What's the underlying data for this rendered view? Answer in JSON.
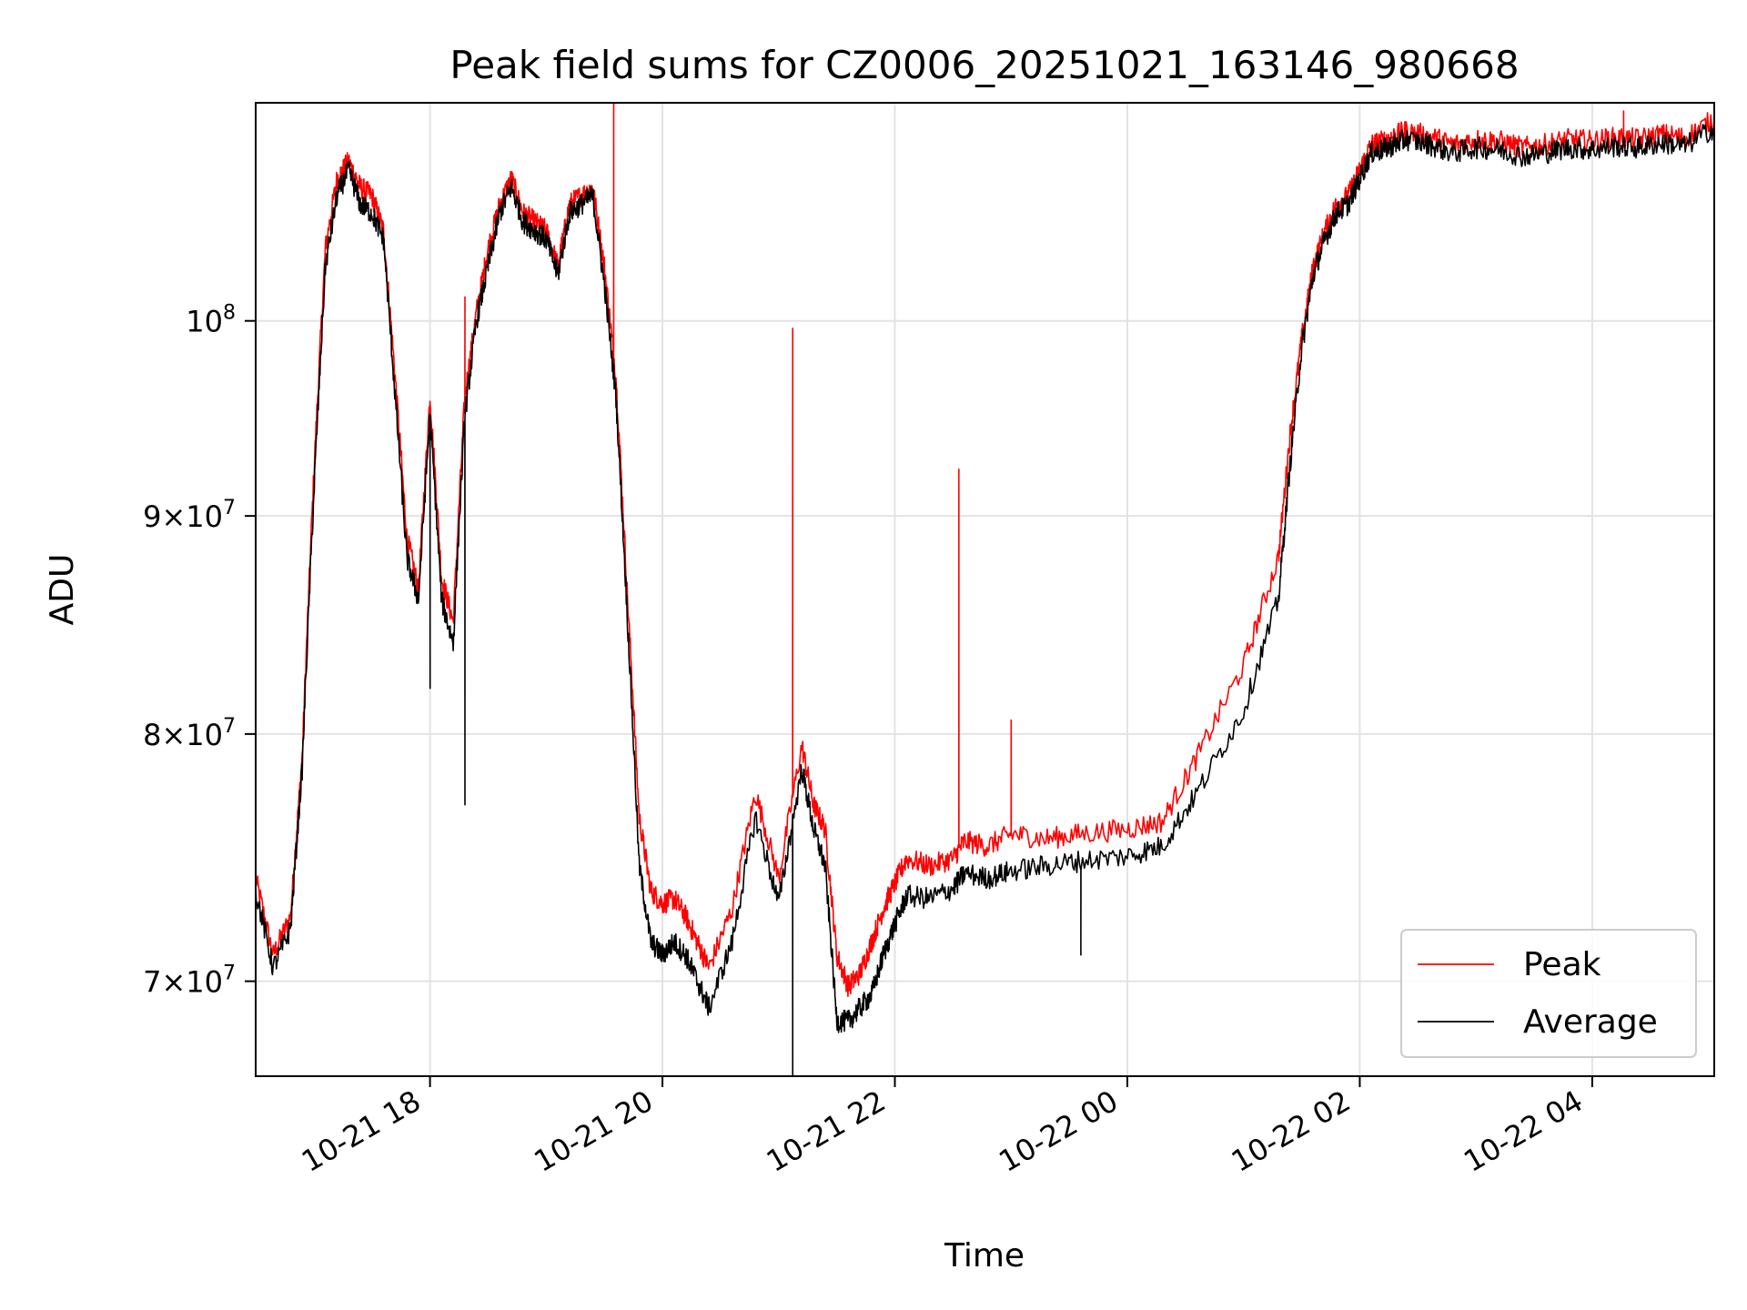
{
  "chart_data": {
    "type": "line",
    "title": "Peak field sums for CZ0006_20251021_163146_980668",
    "xlabel": "Time",
    "ylabel": "ADU",
    "yscale": "log",
    "xlim": [
      16.5,
      29.05
    ],
    "ylim": [
      66500000,
      112500000
    ],
    "grid": true,
    "legend_position": "lower-right",
    "x_ticks": [
      {
        "value": 18,
        "label": "10-21 18"
      },
      {
        "value": 20,
        "label": "10-21 20"
      },
      {
        "value": 22,
        "label": "10-21 22"
      },
      {
        "value": 24,
        "label": "10-22 00"
      },
      {
        "value": 26,
        "label": "10-22 02"
      },
      {
        "value": 28,
        "label": "10-22 04"
      }
    ],
    "y_ticks": [
      {
        "value": 70000000,
        "mant": "7",
        "times": "×",
        "base": "10",
        "exp": "7"
      },
      {
        "value": 80000000,
        "mant": "8",
        "times": "×",
        "base": "10",
        "exp": "7"
      },
      {
        "value": 90000000,
        "mant": "9",
        "times": "×",
        "base": "10",
        "exp": "7"
      },
      {
        "value": 100000000,
        "mant": "",
        "times": "",
        "base": "10",
        "exp": "8"
      }
    ],
    "series": [
      {
        "name": "Peak",
        "color": "#ff0000",
        "x": [
          16.5,
          16.65,
          16.8,
          16.9,
          17.0,
          17.1,
          17.2,
          17.3,
          17.4,
          17.5,
          17.6,
          17.7,
          17.8,
          17.9,
          18.0,
          18.1,
          18.2,
          18.3,
          18.4,
          18.5,
          18.6,
          18.7,
          18.8,
          18.9,
          19.0,
          19.1,
          19.2,
          19.3,
          19.4,
          19.5,
          19.6,
          19.7,
          19.8,
          19.9,
          20.0,
          20.1,
          20.2,
          20.3,
          20.4,
          20.6,
          20.8,
          21.0,
          21.2,
          21.3,
          21.4,
          21.5,
          21.6,
          21.7,
          21.8,
          21.9,
          22.0,
          22.1,
          22.3,
          22.5,
          22.6,
          22.8,
          23.0,
          23.3,
          23.6,
          24.0,
          24.3,
          24.6,
          25.0,
          25.3,
          25.4,
          25.5,
          25.6,
          25.7,
          25.8,
          25.9,
          26.0,
          26.1,
          26.2,
          26.3,
          26.4,
          26.6,
          26.8,
          27.0,
          27.2,
          27.4,
          27.6,
          27.8,
          28.0,
          28.2,
          28.4,
          28.6,
          28.8,
          29.05
        ],
        "y": [
          74000000,
          71000000,
          72500000,
          79000000,
          92000000,
          104000000,
          108000000,
          109000000,
          107500000,
          107000000,
          105000000,
          97000000,
          89000000,
          86500000,
          96000000,
          87000000,
          85000000,
          96000000,
          100500000,
          104000000,
          106500000,
          108000000,
          106000000,
          105500000,
          105000000,
          103000000,
          106500000,
          107000000,
          107500000,
          103000000,
          97000000,
          86000000,
          76500000,
          73500000,
          73000000,
          73200000,
          72500000,
          71500000,
          70500000,
          72800000,
          77500000,
          74000000,
          79500000,
          77000000,
          76000000,
          71000000,
          69800000,
          70300000,
          71500000,
          72800000,
          73800000,
          74800000,
          74500000,
          74800000,
          75500000,
          75300000,
          75800000,
          75600000,
          75800000,
          76000000,
          76300000,
          79000000,
          83000000,
          88000000,
          94000000,
          99000000,
          103000000,
          105000000,
          106500000,
          107000000,
          108500000,
          110000000,
          110200000,
          110500000,
          110800000,
          110500000,
          110000000,
          110300000,
          110200000,
          109800000,
          110000000,
          110300000,
          110200000,
          110400000,
          110300000,
          110600000,
          110400000,
          111500000
        ],
        "spikes": [
          {
            "x": 19.58,
            "y": 112500000
          },
          {
            "x": 21.12,
            "y": 99600000
          },
          {
            "x": 22.55,
            "y": 92300000
          },
          {
            "x": 23.0,
            "y": 80600000
          },
          {
            "x": 18.3,
            "y": 101300000
          },
          {
            "x": 28.27,
            "y": 112000000
          }
        ]
      },
      {
        "name": "Average",
        "color": "#000000",
        "x": [
          16.5,
          16.65,
          16.8,
          16.9,
          17.0,
          17.1,
          17.2,
          17.3,
          17.4,
          17.5,
          17.6,
          17.7,
          17.8,
          17.9,
          18.0,
          18.1,
          18.2,
          18.3,
          18.4,
          18.5,
          18.6,
          18.7,
          18.8,
          18.9,
          19.0,
          19.1,
          19.2,
          19.3,
          19.4,
          19.5,
          19.6,
          19.7,
          19.8,
          19.9,
          20.0,
          20.1,
          20.2,
          20.3,
          20.4,
          20.6,
          20.8,
          21.0,
          21.2,
          21.3,
          21.4,
          21.5,
          21.6,
          21.7,
          21.8,
          21.9,
          22.0,
          22.1,
          22.3,
          22.5,
          22.6,
          22.8,
          23.0,
          23.3,
          23.6,
          24.0,
          24.3,
          24.6,
          25.0,
          25.3,
          25.4,
          25.5,
          25.6,
          25.7,
          25.8,
          25.9,
          26.0,
          26.1,
          26.2,
          26.3,
          26.4,
          26.6,
          26.8,
          27.0,
          27.2,
          27.4,
          27.6,
          27.8,
          28.0,
          28.2,
          28.4,
          28.6,
          28.8,
          29.05
        ],
        "y": [
          73500000,
          70500000,
          72000000,
          78500000,
          91000000,
          103000000,
          107000000,
          108500000,
          106500000,
          106000000,
          104500000,
          96000000,
          88000000,
          86000000,
          95000000,
          86000000,
          84000000,
          95000000,
          100000000,
          103000000,
          106000000,
          107500000,
          105500000,
          105000000,
          104500000,
          102500000,
          106000000,
          106500000,
          107000000,
          102000000,
          96000000,
          85000000,
          74500000,
          71500000,
          71000000,
          71500000,
          71000000,
          70000000,
          69000000,
          71500000,
          76500000,
          73000000,
          78500000,
          76000000,
          74500000,
          68500000,
          68500000,
          69000000,
          69500000,
          71000000,
          72200000,
          73300000,
          73200000,
          73600000,
          74200000,
          74000000,
          74300000,
          74500000,
          74700000,
          74900000,
          75300000,
          77500000,
          81000000,
          86000000,
          92500000,
          98500000,
          102500000,
          104500000,
          106000000,
          106500000,
          108000000,
          109500000,
          109700000,
          110000000,
          110300000,
          110000000,
          109500000,
          109800000,
          109700000,
          109300000,
          109500000,
          109800000,
          109700000,
          109900000,
          109800000,
          110100000,
          109900000,
          111000000
        ],
        "spikes": [
          {
            "x": 21.12,
            "y": 66300000
          },
          {
            "x": 18.3,
            "y": 77000000
          },
          {
            "x": 18.0,
            "y": 82000000
          },
          {
            "x": 23.6,
            "y": 71000000
          }
        ]
      }
    ]
  }
}
